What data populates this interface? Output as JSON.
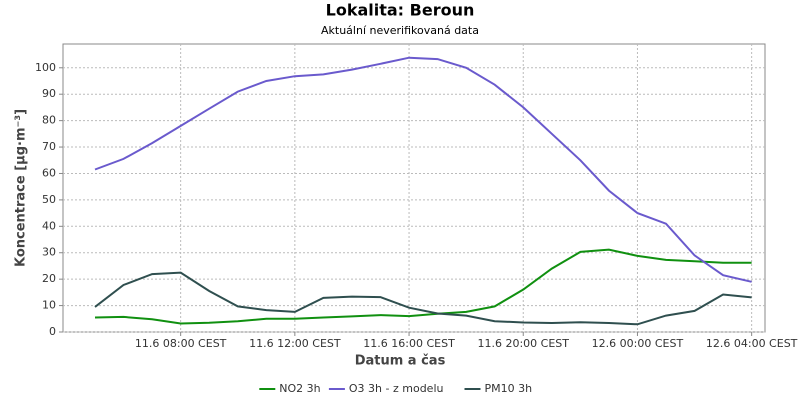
{
  "chart_data": {
    "type": "line",
    "title": "Lokalita: Beroun",
    "subtitle": "Aktuální neverifikovaná data",
    "xlabel": "Datum a čas",
    "ylabel": "Koncentrace [µg·m⁻³]",
    "categories": [
      null,
      null,
      null,
      "11.6 08:00 CEST",
      null,
      null,
      null,
      "11.6 12:00 CEST",
      null,
      null,
      null,
      "11.6 16:00 CEST",
      null,
      null,
      null,
      "11.6 20:00 CEST",
      null,
      null,
      null,
      "12.6 00:00 CEST",
      null,
      null,
      null,
      "12.6 04:00 CEST"
    ],
    "series": [
      {
        "name": "NO2 3h",
        "color": "#109010",
        "values": [
          5.5,
          5.7,
          4.8,
          3.2,
          3.5,
          4.1,
          5,
          5,
          5.5,
          5.9,
          6.4,
          6,
          6.9,
          7.6,
          9.7,
          16.1,
          24,
          30.3,
          31.2,
          28.8,
          27.3,
          26.8,
          26.2,
          26.2
        ]
      },
      {
        "name": "O3 3h - z modelu",
        "color": "#6a5acd",
        "values": [
          61.5,
          65.5,
          71.5,
          78,
          84.5,
          91,
          95,
          96.8,
          97.5,
          99.3,
          101.5,
          103.8,
          103.3,
          100,
          93.6,
          85,
          75,
          65,
          53.5,
          45,
          41,
          29,
          21.5,
          19
        ]
      },
      {
        "name": "PM10 3h",
        "color": "#2f4f4f",
        "values": [
          9.5,
          17.8,
          21.9,
          22.5,
          15.5,
          9.7,
          8.3,
          7.6,
          12.9,
          13.4,
          13.2,
          9.2,
          7,
          6.2,
          4.1,
          3.6,
          3.4,
          3.7,
          3.4,
          2.9,
          6.2,
          8,
          14.2,
          13.1
        ]
      }
    ],
    "ylim": [
      0,
      109
    ],
    "yticks": [
      0,
      10,
      20,
      30,
      40,
      50,
      60,
      70,
      80,
      90,
      100
    ],
    "grid": true,
    "legend": "bottom"
  }
}
